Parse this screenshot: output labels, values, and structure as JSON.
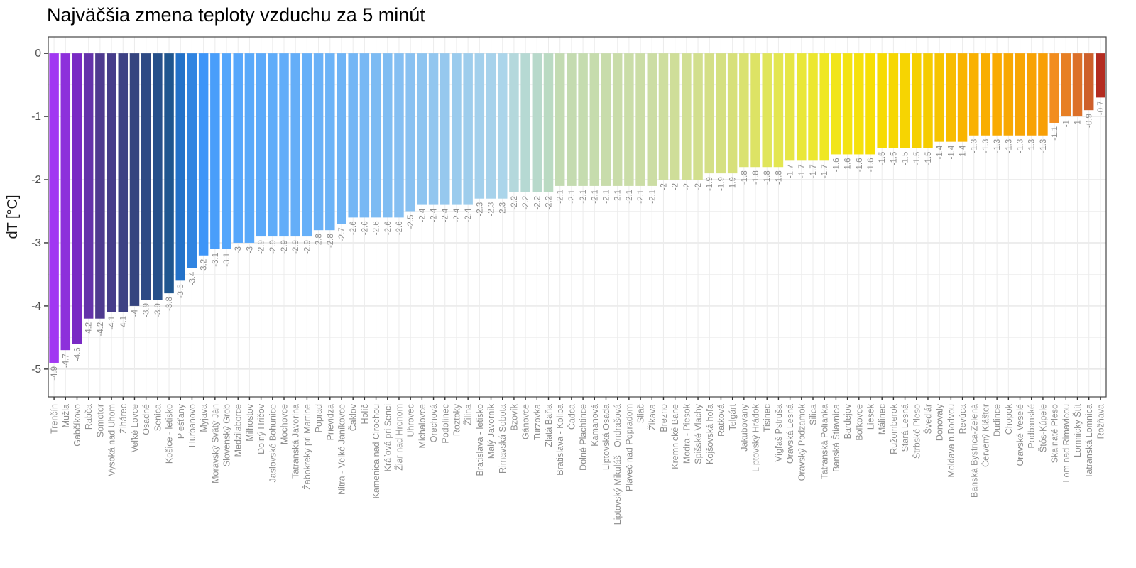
{
  "title": "Najväčšia zmena teploty vzduchu za 5 minút",
  "chart_data": {
    "type": "bar",
    "title": "Najväčšia zmena teploty vzduchu za 5 minút",
    "xlabel": "",
    "ylabel": "dT [°C]",
    "ylim": [
      -5.44,
      0.26
    ],
    "yticks": [
      0,
      -1,
      -2,
      -3,
      -4,
      -5
    ],
    "grid": "horizontal major+minor, vertical per-category",
    "legend": "none",
    "axis_text_color": "#4d4d4d",
    "label_text_color": "#8e8e8e",
    "panel_border_color": "#464646",
    "categories": [
      "Trenčín",
      "Mužla",
      "Gabčíkovo",
      "Rabča",
      "Somotor",
      "Vysoká nad Uhom",
      "Žihárec",
      "Veľké Lovce",
      "Osadné",
      "Senica",
      "Košice - letisko",
      "Piešťany",
      "Hurbanovo",
      "Myjava",
      "Moravský Svätý Ján",
      "Slovenský Grob",
      "Medzilaborce",
      "Milhostov",
      "Dolný Hričov",
      "Jaslovské Bohunice",
      "Mochovce",
      "Tatranská Javorina",
      "Žabokreky pri Martine",
      "Poprad",
      "Prievidza",
      "Nitra - Velké Janíkovce",
      "Čaklov",
      "Holíč",
      "Kamenica nad Cirochou",
      "Kráľová pri Senci",
      "Žiar nad Hronom",
      "Uhrovec",
      "Michalovce",
      "Orechová",
      "Podolínec",
      "Roztoky",
      "Žilina",
      "Bratislava - letisko",
      "Malý Javorník",
      "Rimavská Sobota",
      "Bzovík",
      "Gánovce",
      "Turzovka",
      "Zlatá Baňa",
      "Bratislava - Koliba",
      "Čadca",
      "Dolné Plachtince",
      "Kamanová",
      "Liptovská Osada",
      "Liptovský Mikuláš - Ondrašová",
      "Plaveč nad Popradom",
      "Sliač",
      "Žikava",
      "Brezno",
      "Kremnické Bane",
      "Modra - Piesok",
      "Spišské Vlachy",
      "Kojšovská hoľa",
      "Ratková",
      "Telgárt",
      "Jakubovany",
      "Liptovský Hrádok",
      "Tisinec",
      "Vígľaš Pstruša",
      "Oravská Lesná",
      "Oravský Podzamok",
      "Silica",
      "Tatranská Polianka",
      "Banská Štiavnica",
      "Bardejov",
      "Boľkovce",
      "Liesek",
      "Málinec",
      "Ružomberok",
      "Stará Lesná",
      "Štrbské Pleso",
      "Švedlár",
      "Donovaly",
      "Moldava n.Bodvou",
      "Revúca",
      "Banská Bystrica-Zelená",
      "Červený Kláštor",
      "Dudince",
      "Chopok",
      "Oravské Veselé",
      "Podbanské",
      "Štós-Kúpele",
      "Skalnaté Pleso",
      "Lom nad Rimavicou",
      "Lomnicky Štít",
      "Tatranská Lomnica",
      "Rožňava"
    ],
    "values": [
      -4.9,
      -4.7,
      -4.6,
      -4.2,
      -4.2,
      -4.1,
      -4.1,
      -4,
      -3.9,
      -3.9,
      -3.8,
      -3.6,
      -3.4,
      -3.2,
      -3.1,
      -3.1,
      -3,
      -3,
      -2.9,
      -2.9,
      -2.9,
      -2.9,
      -2.9,
      -2.8,
      -2.8,
      -2.7,
      -2.6,
      -2.6,
      -2.6,
      -2.6,
      -2.6,
      -2.5,
      -2.4,
      -2.4,
      -2.4,
      -2.4,
      -2.4,
      -2.3,
      -2.3,
      -2.3,
      -2.2,
      -2.2,
      -2.2,
      -2.2,
      -2.1,
      -2.1,
      -2.1,
      -2.1,
      -2.1,
      -2.1,
      -2.1,
      -2.1,
      -2.1,
      -2,
      -2,
      -2,
      -2,
      -1.9,
      -1.9,
      -1.9,
      -1.8,
      -1.8,
      -1.8,
      -1.8,
      -1.7,
      -1.7,
      -1.7,
      -1.7,
      -1.6,
      -1.6,
      -1.6,
      -1.6,
      -1.5,
      -1.5,
      -1.5,
      -1.5,
      -1.5,
      -1.4,
      -1.4,
      -1.4,
      -1.3,
      -1.3,
      -1.3,
      -1.3,
      -1.3,
      -1.3,
      -1.3,
      -1.1,
      -1,
      -1,
      -0.9,
      -0.7
    ],
    "palette_stops": [
      {
        "i": 0,
        "c": "#A137F2"
      },
      {
        "i": 2,
        "c": "#7929C4"
      },
      {
        "i": 4,
        "c": "#4E3A8F"
      },
      {
        "i": 7,
        "c": "#35447F"
      },
      {
        "i": 10,
        "c": "#1F568F"
      },
      {
        "i": 11,
        "c": "#2372C9"
      },
      {
        "i": 13,
        "c": "#3D95F8"
      },
      {
        "i": 15,
        "c": "#54A6FB"
      },
      {
        "i": 25,
        "c": "#6FB4F6"
      },
      {
        "i": 34,
        "c": "#96C8EE"
      },
      {
        "i": 39,
        "c": "#ABD5EA"
      },
      {
        "i": 40,
        "c": "#B4D8DC"
      },
      {
        "i": 43,
        "c": "#BADAC2"
      },
      {
        "i": 44,
        "c": "#C3DBB2"
      },
      {
        "i": 52,
        "c": "#CCDDA4"
      },
      {
        "i": 56,
        "c": "#D2DF8E"
      },
      {
        "i": 59,
        "c": "#D7E07A"
      },
      {
        "i": 63,
        "c": "#E3E650"
      },
      {
        "i": 67,
        "c": "#EFE722"
      },
      {
        "i": 71,
        "c": "#F7DF04"
      },
      {
        "i": 76,
        "c": "#F5CC00"
      },
      {
        "i": 79,
        "c": "#F9B400"
      },
      {
        "i": 86,
        "c": "#F89F05"
      },
      {
        "i": 87,
        "c": "#F28D1F"
      },
      {
        "i": 89,
        "c": "#DC7029"
      },
      {
        "i": 90,
        "c": "#CE5F2A"
      },
      {
        "i": 91,
        "c": "#B32B20"
      }
    ]
  }
}
